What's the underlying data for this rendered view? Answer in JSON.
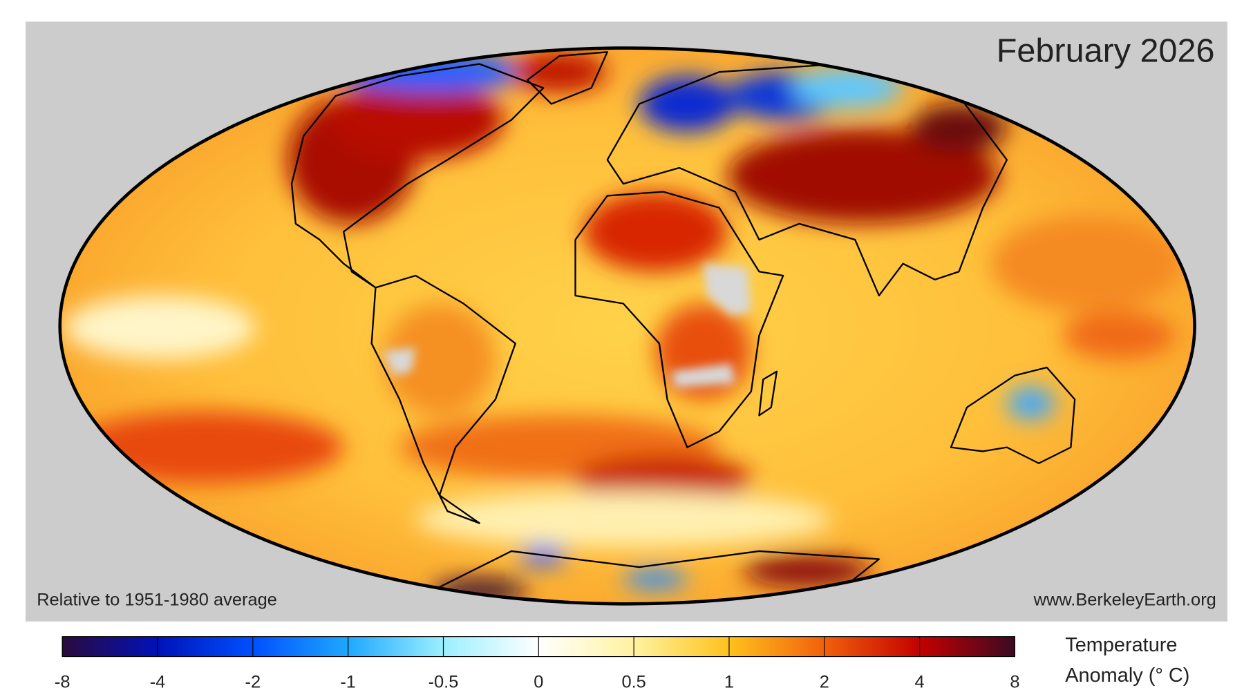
{
  "map": {
    "title": "February 2026",
    "baseline_note": "Relative to 1951-1980 average",
    "source": "www.BerkeleyEarth.org"
  },
  "colorbar": {
    "ticks": [
      -8,
      -4,
      -2,
      -1,
      -0.5,
      0,
      0.5,
      1,
      2,
      4,
      8
    ],
    "label_lines": [
      "Temperature",
      "Anomaly (° C)"
    ]
  }
}
